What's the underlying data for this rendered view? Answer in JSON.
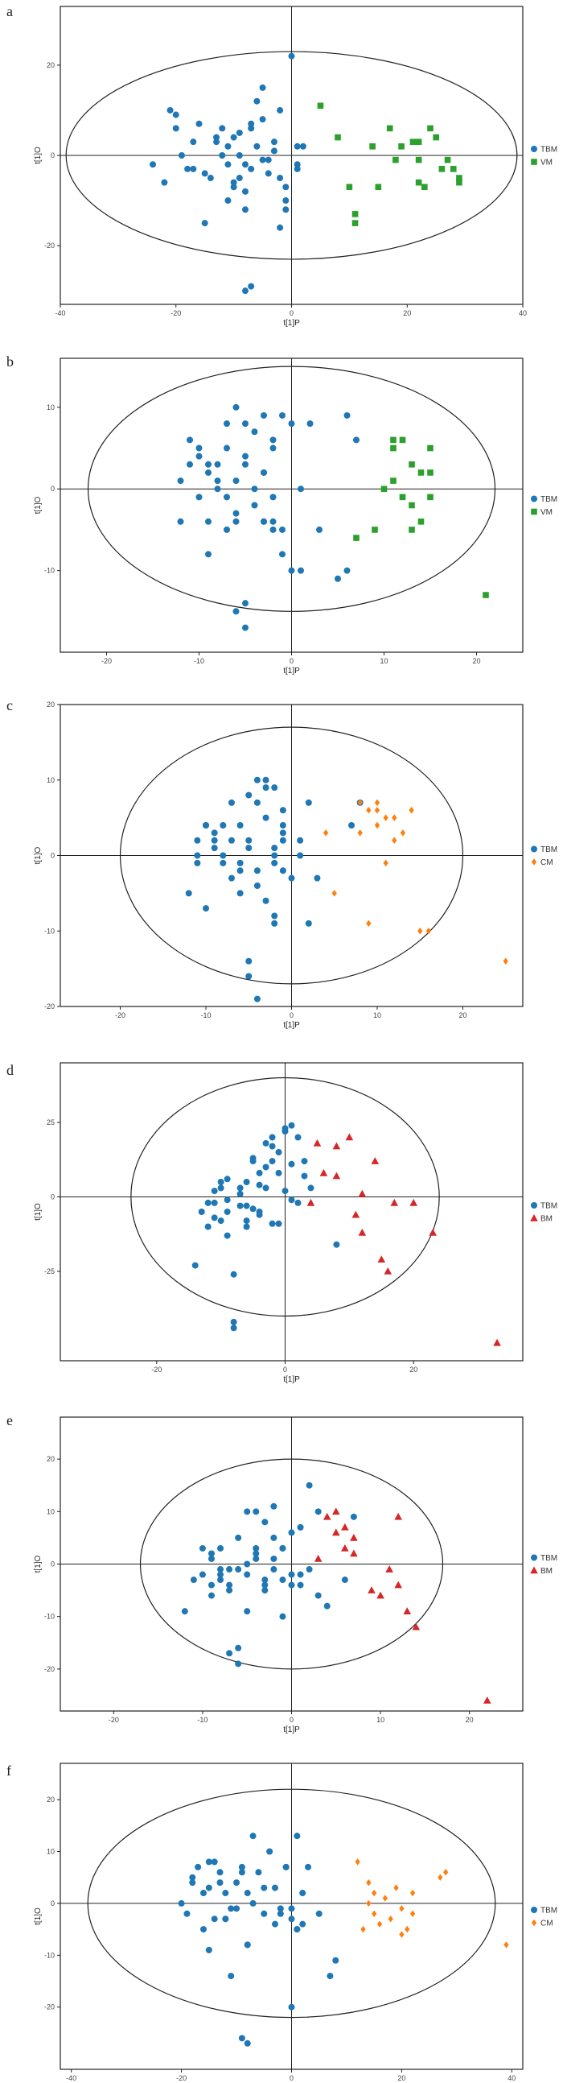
{
  "colors": {
    "TBM": "#1f77b4",
    "VM": "#2ca02c",
    "CM": "#ff7f0e",
    "BM": "#d62728",
    "frame": "#222222"
  },
  "chart_data": [
    {
      "type": "scatter",
      "panel_label": "a",
      "xlabel": "t[1]P",
      "ylabel": "t[1]O",
      "xlim": [
        -40,
        40
      ],
      "ylim": [
        -33,
        33
      ],
      "xticks": [
        -40,
        -20,
        0,
        20,
        40
      ],
      "yticks": [
        -20,
        0,
        20
      ],
      "xtick_labels": [
        "-40",
        "-20",
        "0",
        "20",
        "40"
      ],
      "ytick_labels": [
        "-20",
        "0",
        "20"
      ],
      "ellipse": {
        "rx": 39,
        "ry": 23
      },
      "series": [
        {
          "name": "TBM",
          "marker": "circle",
          "x": [
            -21,
            -20,
            -19,
            -18,
            -17,
            -16,
            -15,
            -14,
            -13,
            -12,
            -12,
            -11,
            -11,
            -10,
            -10,
            -9,
            -9,
            -8,
            -8,
            -7,
            -7,
            -6,
            -5,
            -5,
            -4,
            -3,
            -2,
            -2,
            -1,
            0,
            1,
            1,
            2,
            -24,
            -22,
            -20,
            -13,
            -10,
            -8,
            -6,
            -4,
            -2,
            -1,
            -3,
            -5,
            -7,
            -9,
            -15,
            -17,
            -11,
            1,
            -1,
            -8,
            -7
          ],
          "y": [
            10,
            9,
            0,
            -3,
            3,
            7,
            -15,
            -5,
            4,
            6,
            0,
            -10,
            -2,
            4,
            -6,
            0,
            5,
            -8,
            -2,
            6,
            -3,
            12,
            15,
            8,
            -1,
            1,
            10,
            -16,
            -12,
            22,
            -2,
            -3,
            2,
            -2,
            -6,
            6,
            3,
            -7,
            -12,
            2,
            -4,
            -5,
            -10,
            3,
            -1,
            7,
            -5,
            -4,
            -3,
            2,
            2,
            -7,
            -30,
            -29
          ]
        },
        {
          "name": "VM",
          "marker": "square",
          "x": [
            5,
            8,
            10,
            11,
            11,
            14,
            15,
            17,
            19,
            21,
            22,
            22,
            23,
            24,
            25,
            26,
            27,
            28,
            29,
            29,
            22,
            18
          ],
          "y": [
            11,
            4,
            -7,
            -13,
            -15,
            2,
            -7,
            6,
            2,
            3,
            3,
            -6,
            -7,
            6,
            4,
            -3,
            -1,
            -3,
            -5,
            -6,
            -1,
            -1
          ]
        }
      ]
    },
    {
      "type": "scatter",
      "panel_label": "b",
      "xlabel": "t[1]P",
      "ylabel": "t[1]O",
      "xlim": [
        -25,
        25
      ],
      "ylim": [
        -20,
        16
      ],
      "xticks": [
        -20,
        -10,
        0,
        10,
        20
      ],
      "yticks": [
        -10,
        0,
        10
      ],
      "xtick_labels": [
        "-20",
        "-10",
        "0",
        "10",
        "20"
      ],
      "ytick_labels": [
        "-10",
        "0",
        "10"
      ],
      "ellipse": {
        "rx": 22,
        "ry": 15
      },
      "series": [
        {
          "name": "TBM",
          "marker": "circle",
          "x": [
            -12,
            -11,
            -11,
            -10,
            -10,
            -9,
            -9,
            -8,
            -8,
            -7,
            -7,
            -6,
            -6,
            -6,
            -5,
            -5,
            -5,
            -4,
            -4,
            -3,
            -3,
            -3,
            -2,
            -2,
            -2,
            -1,
            -1,
            0,
            1,
            2,
            3,
            -12,
            -9,
            -7,
            -6,
            -5,
            -3,
            -2,
            -1,
            0,
            -10,
            -8,
            -4,
            -6,
            -7,
            -5,
            5,
            6,
            6,
            7,
            -9,
            -3,
            -2,
            1
          ],
          "y": [
            -4,
            3,
            6,
            -1,
            5,
            2,
            -8,
            3,
            0,
            8,
            -5,
            -3,
            10,
            -15,
            4,
            -17,
            -14,
            -2,
            7,
            -4,
            9,
            2,
            -1,
            -4,
            6,
            -5,
            9,
            -10,
            0,
            8,
            -5,
            1,
            3,
            5,
            1,
            8,
            2,
            -5,
            -8,
            8,
            4,
            1,
            0,
            -4,
            -1,
            3,
            -11,
            -10,
            9,
            6,
            -4,
            -4,
            5,
            -10
          ]
        },
        {
          "name": "VM",
          "marker": "square",
          "x": [
            7,
            9,
            10,
            11,
            11,
            12,
            12,
            13,
            13,
            14,
            14,
            15,
            15,
            15,
            21,
            13,
            11
          ],
          "y": [
            -6,
            -5,
            0,
            6,
            5,
            6,
            -1,
            3,
            -2,
            2,
            -4,
            5,
            2,
            -1,
            -13,
            -5,
            1
          ]
        }
      ]
    },
    {
      "type": "scatter",
      "panel_label": "c",
      "xlabel": "t[1]P",
      "ylabel": "t[1]O",
      "xlim": [
        -27,
        27
      ],
      "ylim": [
        -20,
        20
      ],
      "xticks": [
        -20,
        -10,
        0,
        10,
        20
      ],
      "yticks": [
        -20,
        -10,
        0,
        10,
        20
      ],
      "xtick_labels": [
        "-20",
        "-10",
        "0",
        "10",
        "20"
      ],
      "ytick_labels": [
        "-20",
        "-10",
        "0",
        "10",
        "20"
      ],
      "ellipse": {
        "rx": 20,
        "ry": 17
      },
      "series": [
        {
          "name": "TBM",
          "marker": "circle",
          "x": [
            -12,
            -11,
            -11,
            -10,
            -10,
            -9,
            -9,
            -8,
            -8,
            -7,
            -7,
            -6,
            -6,
            -6,
            -5,
            -5,
            -5,
            -4,
            -4,
            -3,
            -3,
            -2,
            -2,
            -2,
            -1,
            -1,
            0,
            1,
            2,
            2,
            3,
            -10,
            -8,
            -5,
            -4,
            -3,
            -2,
            -1,
            -7,
            -6,
            -4,
            -4,
            -5,
            -9,
            -11,
            -3,
            1,
            7,
            8,
            -2,
            -1,
            -2,
            -1
          ],
          "y": [
            -5,
            2,
            -1,
            4,
            -7,
            1,
            3,
            -1,
            4,
            -3,
            2,
            4,
            -5,
            -2,
            1,
            -16,
            -14,
            7,
            -19,
            -6,
            10,
            9,
            1,
            -9,
            4,
            -2,
            -3,
            2,
            7,
            -9,
            -3,
            4,
            0,
            2,
            -4,
            5,
            -1,
            3,
            7,
            -1,
            10,
            -2,
            8,
            2,
            0,
            9,
            0,
            4,
            7,
            0,
            6,
            -8,
            2
          ]
        },
        {
          "name": "CM",
          "marker": "diamond",
          "x": [
            4,
            5,
            8,
            9,
            9,
            10,
            10,
            11,
            11,
            12,
            12,
            13,
            14,
            15,
            16,
            25,
            8,
            10
          ],
          "y": [
            3,
            -5,
            3,
            -9,
            6,
            7,
            4,
            5,
            -1,
            2,
            5,
            3,
            6,
            -10,
            -10,
            -14,
            7,
            6
          ]
        }
      ]
    },
    {
      "type": "scatter",
      "panel_label": "d",
      "xlabel": "t[1]P",
      "ylabel": "t[1]O",
      "xlim": [
        -35,
        37
      ],
      "ylim": [
        -55,
        45
      ],
      "xticks": [
        -20,
        0,
        20
      ],
      "yticks": [
        -25,
        0,
        25
      ],
      "xtick_labels": [
        "-20",
        "0",
        "20"
      ],
      "ytick_labels": [
        "-25",
        "0",
        "25"
      ],
      "ellipse": {
        "rx": 24,
        "ry": 40
      },
      "series": [
        {
          "name": "TBM",
          "marker": "circle",
          "x": [
            -14,
            -13,
            -12,
            -12,
            -11,
            -11,
            -10,
            -10,
            -9,
            -9,
            -8,
            -8,
            -7,
            -7,
            -6,
            -6,
            -5,
            -5,
            -4,
            -4,
            -3,
            -3,
            -2,
            -2,
            -1,
            -1,
            0,
            0,
            1,
            1,
            2,
            3,
            4,
            -8,
            -9,
            -10,
            -11,
            -9,
            -7,
            -6,
            -5,
            -4,
            -3,
            -2,
            -1,
            0,
            1,
            2,
            3,
            8,
            -2,
            -4,
            -6
          ],
          "y": [
            -23,
            -5,
            -2,
            -10,
            -7,
            2,
            3,
            -8,
            -13,
            -5,
            -26,
            -42,
            1,
            -3,
            5,
            -10,
            -4,
            13,
            -6,
            8,
            3,
            10,
            -9,
            17,
            8,
            15,
            2,
            23,
            -1,
            24,
            20,
            12,
            3,
            -44,
            -1,
            5,
            -2,
            6,
            3,
            -3,
            12,
            -5,
            18,
            20,
            -9,
            22,
            11,
            -2,
            7,
            -16,
            12,
            4,
            -8
          ]
        },
        {
          "name": "BM",
          "marker": "triangle",
          "x": [
            4,
            5,
            6,
            8,
            8,
            10,
            11,
            12,
            14,
            15,
            16,
            17,
            20,
            23,
            33,
            12
          ],
          "y": [
            -2,
            18,
            8,
            17,
            7,
            20,
            -6,
            -12,
            12,
            -21,
            -25,
            -2,
            -2,
            -12,
            -49,
            1
          ]
        }
      ]
    },
    {
      "type": "scatter",
      "panel_label": "e",
      "xlabel": "t[1]P",
      "ylabel": "t[1]O",
      "xlim": [
        -26,
        26
      ],
      "ylim": [
        -28,
        28
      ],
      "xticks": [
        -20,
        -10,
        0,
        10,
        20
      ],
      "yticks": [
        -20,
        -10,
        0,
        10,
        20
      ],
      "xtick_labels": [
        "-20",
        "-10",
        "0",
        "10",
        "20"
      ],
      "ytick_labels": [
        "-20",
        "-10",
        "0",
        "10",
        "20"
      ],
      "ellipse": {
        "rx": 17,
        "ry": 20
      },
      "series": [
        {
          "name": "TBM",
          "marker": "circle",
          "x": [
            -12,
            -11,
            -10,
            -10,
            -9,
            -9,
            -8,
            -8,
            -7,
            -7,
            -6,
            -6,
            -5,
            -5,
            -4,
            -4,
            -3,
            -3,
            -2,
            -2,
            -1,
            -1,
            0,
            0,
            1,
            1,
            2,
            3,
            3,
            4,
            6,
            7,
            -8,
            -7,
            -9,
            -6,
            -5,
            -4,
            -3,
            -2,
            -1,
            0,
            -7,
            -6,
            -5,
            -4,
            -3,
            -2,
            1,
            2,
            -1,
            -8,
            -9
          ],
          "y": [
            -9,
            -3,
            3,
            -2,
            2,
            -6,
            -1,
            3,
            -4,
            -17,
            5,
            -19,
            -2,
            10,
            3,
            1,
            8,
            -5,
            5,
            11,
            -10,
            3,
            -4,
            6,
            7,
            -2,
            15,
            -6,
            10,
            -8,
            -3,
            9,
            -2,
            -5,
            1,
            -1,
            0,
            2,
            -4,
            -1,
            3,
            -2,
            -1,
            -16,
            -9,
            10,
            -3,
            1,
            -4,
            -1,
            -3,
            -3,
            -4
          ]
        },
        {
          "name": "BM",
          "marker": "triangle",
          "x": [
            3,
            4,
            5,
            5,
            6,
            6,
            7,
            7,
            10,
            11,
            12,
            12,
            13,
            14,
            22,
            9
          ],
          "y": [
            1,
            9,
            10,
            6,
            7,
            3,
            5,
            2,
            -6,
            -1,
            9,
            -4,
            -9,
            -12,
            -26,
            -5
          ]
        }
      ]
    },
    {
      "type": "scatter",
      "panel_label": "f",
      "xlabel": "t[1]P",
      "ylabel": "t[1]O",
      "xlim": [
        -42,
        42
      ],
      "ylim": [
        -32,
        27
      ],
      "xticks": [
        -40,
        -20,
        0,
        20,
        40
      ],
      "yticks": [
        -20,
        -10,
        0,
        10,
        20
      ],
      "xtick_labels": [
        "-40",
        "-20",
        "0",
        "20",
        "40"
      ],
      "ytick_labels": [
        "-20",
        "-10",
        "0",
        "10",
        "20"
      ],
      "ellipse": {
        "rx": 37,
        "ry": 22
      },
      "series": [
        {
          "name": "TBM",
          "marker": "circle",
          "x": [
            -20,
            -19,
            -18,
            -17,
            -16,
            -15,
            -15,
            -14,
            -13,
            -12,
            -12,
            -11,
            -10,
            -10,
            -9,
            -8,
            -8,
            -7,
            -6,
            -5,
            -4,
            -3,
            -2,
            -1,
            0,
            1,
            1,
            2,
            3,
            5,
            7,
            8,
            -16,
            -14,
            -13,
            -11,
            -9,
            -7,
            -5,
            -3,
            -1,
            0,
            1,
            2,
            -18,
            -15,
            -12,
            -8,
            -2,
            0,
            -9,
            -8
          ],
          "y": [
            0,
            -2,
            5,
            7,
            -5,
            3,
            -9,
            8,
            6,
            -3,
            2,
            -14,
            4,
            -1,
            7,
            2,
            -8,
            13,
            6,
            3,
            10,
            -4,
            -2,
            7,
            -1,
            -5,
            13,
            -4,
            7,
            -2,
            -14,
            -11,
            2,
            -3,
            4,
            -1,
            6,
            0,
            -2,
            3,
            7,
            -3,
            -5,
            2,
            4,
            8,
            -3,
            -8,
            -1,
            -20,
            -26,
            -27
          ]
        },
        {
          "name": "CM",
          "marker": "diamond",
          "x": [
            12,
            13,
            14,
            15,
            15,
            16,
            17,
            18,
            19,
            20,
            21,
            22,
            27,
            28,
            39,
            20,
            14,
            22
          ],
          "y": [
            8,
            -5,
            4,
            -2,
            2,
            -4,
            1,
            -3,
            3,
            -6,
            -5,
            2,
            5,
            6,
            -8,
            -1,
            0,
            -2
          ]
        }
      ]
    }
  ]
}
